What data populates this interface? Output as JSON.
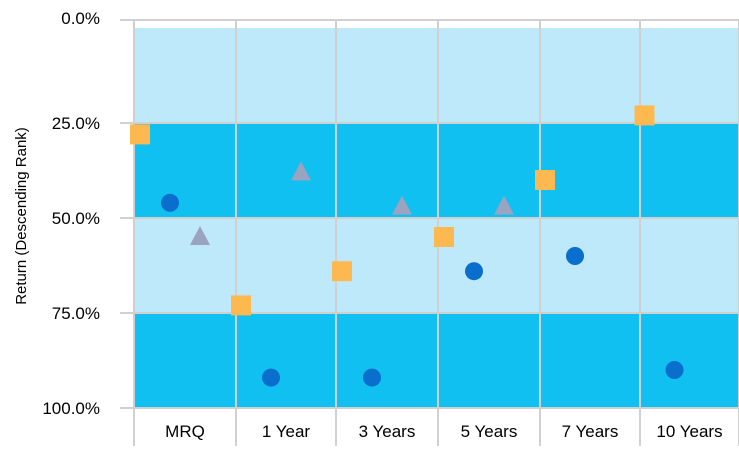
{
  "chart_data": {
    "type": "scatter",
    "title": "",
    "xlabel": "",
    "ylabel": "Return (Descending Rank)",
    "categories": [
      "MRQ",
      "1 Year",
      "3 Years",
      "5 Years",
      "7 Years",
      "10 Years"
    ],
    "y_ticks": [
      "0.0%",
      "25.0%",
      "50.0%",
      "75.0%",
      "100.0%"
    ],
    "ylim": [
      0,
      100
    ],
    "y_inverted": true,
    "grid": true,
    "bands": [
      {
        "from": 0,
        "to": 25,
        "color": "#BEE9FA"
      },
      {
        "from": 25,
        "to": 50,
        "color": "#10C0F0"
      },
      {
        "from": 50,
        "to": 75,
        "color": "#BEE9FA"
      },
      {
        "from": 75,
        "to": 100,
        "color": "#10C0F0"
      }
    ],
    "series": [
      {
        "marker": "square",
        "color": "#FDB950",
        "values": [
          28,
          73,
          64,
          55,
          40,
          23
        ]
      },
      {
        "marker": "circle",
        "color": "#0A6ECC",
        "values": [
          46,
          92,
          92,
          64,
          60,
          90
        ]
      },
      {
        "marker": "triangle",
        "color": "#9AA3BF",
        "values": [
          55,
          38,
          47,
          null,
          null,
          null
        ]
      },
      {
        "marker": "triangle",
        "color": "#9AA3BF",
        "values": [
          null,
          null,
          null,
          47,
          null,
          null
        ]
      }
    ]
  }
}
